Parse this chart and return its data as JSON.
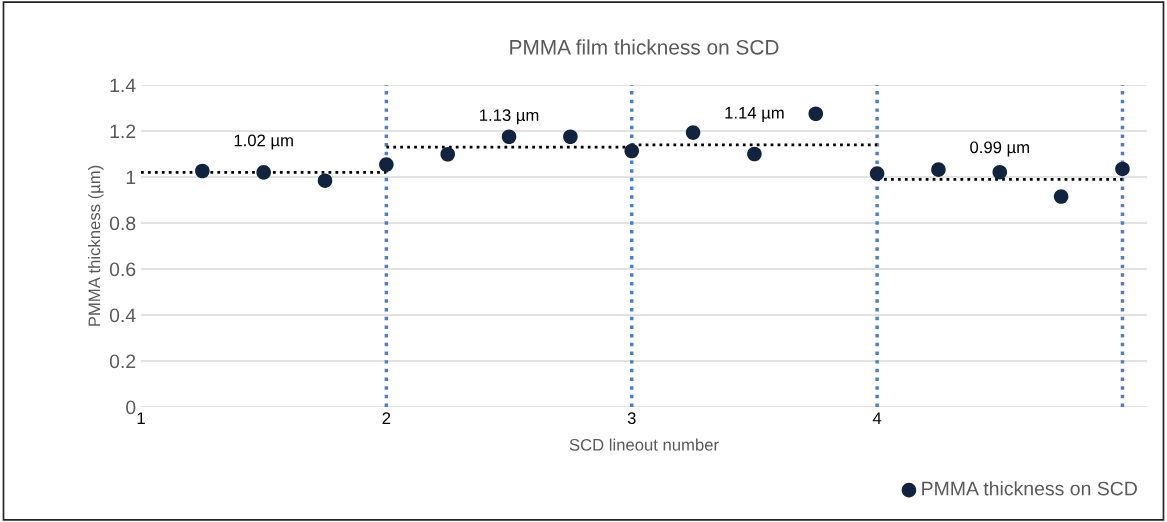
{
  "chart_data": {
    "type": "scatter",
    "title": "PMMA film thickness on SCD",
    "xlabel": "SCD lineout number",
    "ylabel": "PMMA thickness (µm)",
    "xlim": [
      1,
      5.1
    ],
    "xticks": [
      1,
      2,
      3,
      4
    ],
    "ylim": [
      0,
      1.4
    ],
    "yticks": [
      0,
      0.2,
      0.4,
      0.6,
      0.8,
      1,
      1.2,
      1.4
    ],
    "grid": "y",
    "legend": "bottom right",
    "series": [
      {
        "name": "PMMA thickness on SCD",
        "marker": "circle",
        "color": "#10243f",
        "x": [
          1.25,
          1.5,
          1.75,
          2.0,
          2.25,
          2.5,
          2.75,
          3.0,
          3.25,
          3.5,
          3.75,
          4.0,
          4.25,
          4.5,
          4.75,
          5.0
        ],
        "values": [
          1.026,
          1.02,
          0.984,
          1.054,
          1.099,
          1.175,
          1.175,
          1.113,
          1.193,
          1.1,
          1.275,
          1.015,
          1.032,
          1.021,
          0.915,
          1.035
        ]
      },
      {
        "type": "line",
        "line_style": "dotted",
        "color": "#000000",
        "x": [
          1,
          2
        ],
        "values": [
          1.02,
          1.02
        ]
      },
      {
        "type": "line",
        "line_style": "dotted",
        "color": "#000000",
        "x": [
          2,
          3
        ],
        "values": [
          1.13,
          1.13
        ]
      },
      {
        "type": "line",
        "line_style": "dotted",
        "color": "#000000",
        "x": [
          3,
          4
        ],
        "values": [
          1.14,
          1.14
        ]
      },
      {
        "type": "line",
        "line_style": "dotted",
        "color": "#000000",
        "x": [
          4,
          5
        ],
        "values": [
          0.99,
          0.99
        ]
      }
    ],
    "ref_lines": [
      {
        "axis": "x",
        "value": 2,
        "color": "#4a7fc9",
        "line_style": "dotted"
      },
      {
        "axis": "x",
        "value": 3,
        "color": "#4a7fc9",
        "line_style": "dotted"
      },
      {
        "axis": "x",
        "value": 4,
        "color": "#4a7fc9",
        "line_style": "dotted"
      },
      {
        "axis": "x",
        "value": 5,
        "color": "#4a7fc9",
        "line_style": "dotted"
      }
    ],
    "annotations": [
      {
        "text": "1.02 µm",
        "x": 1.5,
        "y": 1.02
      },
      {
        "text": "1.13 µm",
        "x": 2.5,
        "y": 1.13
      },
      {
        "text": "1.14 µm",
        "x": 3.5,
        "y": 1.14
      },
      {
        "text": "0.99 µm",
        "x": 4.5,
        "y": 0.99
      }
    ]
  }
}
